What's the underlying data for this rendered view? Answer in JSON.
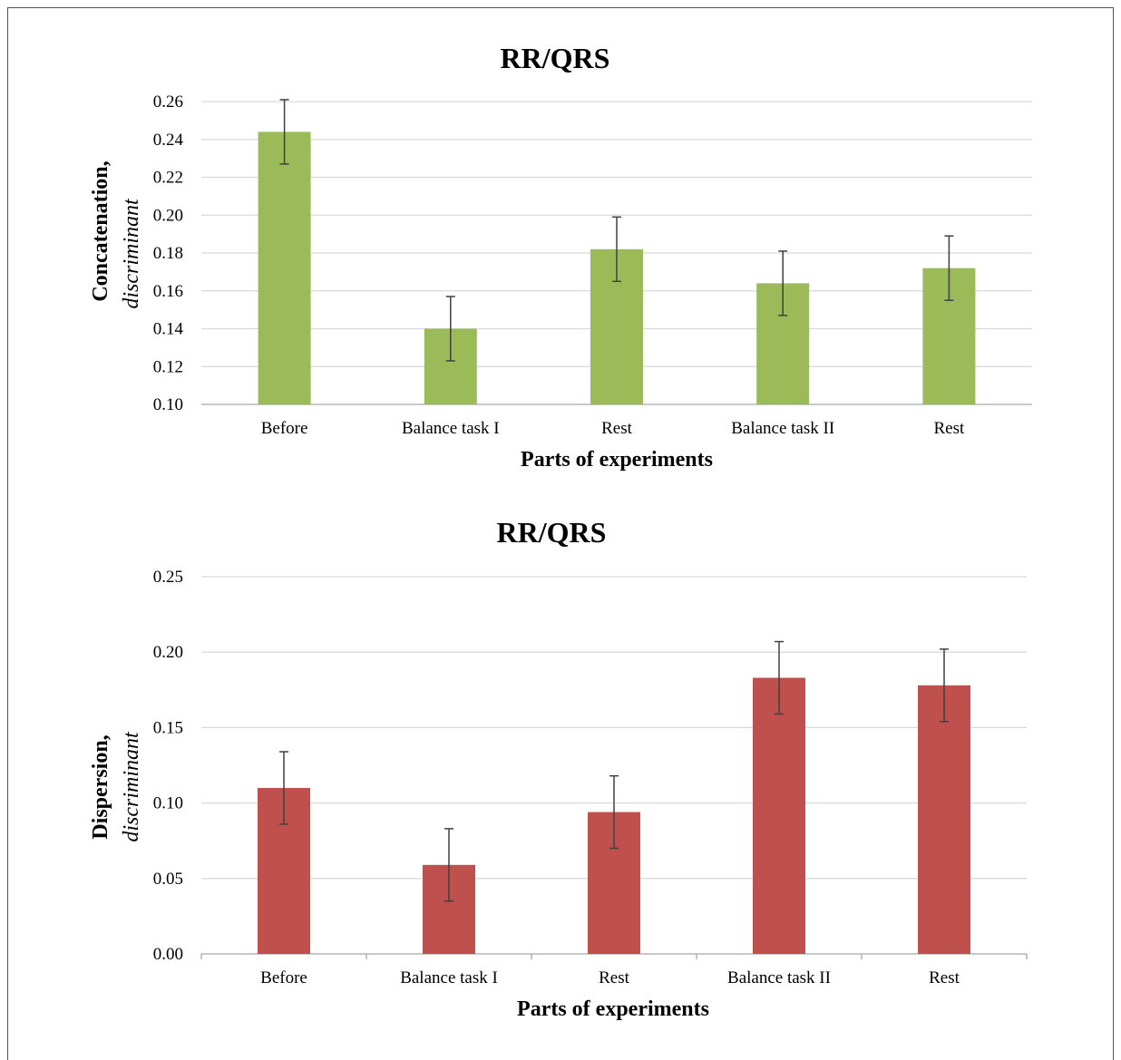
{
  "chart_data": [
    {
      "type": "bar",
      "title": "RR/QRS",
      "xlabel": "Parts of experiments",
      "ylabel": "Concatenation,",
      "ylabel_sub": "discriminant",
      "categories": [
        "Before",
        "Balance task I",
        "Rest",
        "Balance task II",
        "Rest"
      ],
      "values": [
        0.244,
        0.14,
        0.182,
        0.164,
        0.172
      ],
      "error": [
        0.017,
        0.017,
        0.017,
        0.017,
        0.017
      ],
      "ylim": [
        0.1,
        0.26
      ],
      "yticks": [
        "0.10",
        "0.12",
        "0.14",
        "0.16",
        "0.18",
        "0.20",
        "0.22",
        "0.24",
        "0.26"
      ],
      "grid": true,
      "color": "#9BBB59"
    },
    {
      "type": "bar",
      "title": "RR/QRS",
      "xlabel": "Parts of experiments",
      "ylabel": "Dispersion,",
      "ylabel_sub": "discriminant",
      "categories": [
        "Before",
        "Balance task I",
        "Rest",
        "Balance task II",
        "Rest"
      ],
      "values": [
        0.11,
        0.059,
        0.094,
        0.183,
        0.178
      ],
      "error": [
        0.024,
        0.024,
        0.024,
        0.024,
        0.024
      ],
      "ylim": [
        0.0,
        0.25
      ],
      "yticks": [
        "0.00",
        "0.05",
        "0.10",
        "0.15",
        "0.20",
        "0.25"
      ],
      "grid": true,
      "color": "#C0504D"
    }
  ]
}
